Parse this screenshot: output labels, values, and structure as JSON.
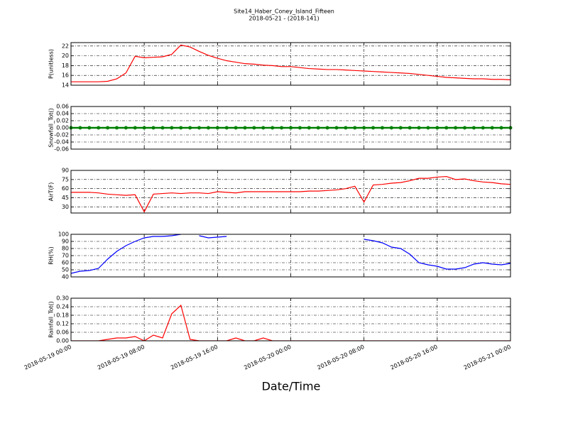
{
  "figure": {
    "title": "Site14_Haber_Coney_Island_Fifteen",
    "subtitle": "2018-05-21 - (2018-141)",
    "xlabel": "Date/Time"
  },
  "chart_data": [
    {
      "type": "line",
      "ylabel": "P(unitless)",
      "color": "#ff0000",
      "grid": true,
      "xlim": [
        "2018-05-19 00:00",
        "2018-05-21 00:00"
      ],
      "xticks": [
        "2018-05-19 00:00",
        "2018-05-19 08:00",
        "2018-05-19 16:00",
        "2018-05-20 00:00",
        "2018-05-20 08:00",
        "2018-05-20 16:00",
        "2018-05-21 00:00"
      ],
      "ylim": [
        14,
        22.7
      ],
      "yticks": [
        14,
        16,
        18,
        20,
        22
      ],
      "x": [
        "2018-05-19 00:00",
        "2018-05-19 01:00",
        "2018-05-19 02:00",
        "2018-05-19 03:00",
        "2018-05-19 04:00",
        "2018-05-19 05:00",
        "2018-05-19 06:00",
        "2018-05-19 07:00",
        "2018-05-19 08:00",
        "2018-05-19 09:00",
        "2018-05-19 10:00",
        "2018-05-19 11:00",
        "2018-05-19 12:00",
        "2018-05-19 13:00",
        "2018-05-19 14:00",
        "2018-05-19 15:00",
        "2018-05-19 16:00",
        "2018-05-19 17:00",
        "2018-05-19 18:00",
        "2018-05-19 19:00",
        "2018-05-19 20:00",
        "2018-05-19 21:00",
        "2018-05-19 22:00",
        "2018-05-19 23:00",
        "2018-05-20 00:00",
        "2018-05-20 01:00",
        "2018-05-20 02:00",
        "2018-05-20 03:00",
        "2018-05-20 04:00",
        "2018-05-20 05:00",
        "2018-05-20 06:00",
        "2018-05-20 07:00",
        "2018-05-20 08:00",
        "2018-05-20 09:00",
        "2018-05-20 10:00",
        "2018-05-20 11:00",
        "2018-05-20 12:00",
        "2018-05-20 13:00",
        "2018-05-20 14:00",
        "2018-05-20 15:00",
        "2018-05-20 16:00",
        "2018-05-20 17:00",
        "2018-05-20 18:00",
        "2018-05-20 19:00",
        "2018-05-20 20:00",
        "2018-05-20 21:00",
        "2018-05-20 22:00",
        "2018-05-20 23:00",
        "2018-05-21 00:00"
      ],
      "values": [
        14.7,
        14.7,
        14.7,
        14.7,
        14.8,
        15.3,
        16.5,
        19.9,
        19.6,
        19.7,
        19.8,
        20.3,
        22.2,
        21.8,
        20.9,
        20.1,
        19.5,
        19.0,
        18.7,
        18.4,
        18.3,
        18.1,
        18.0,
        17.8,
        17.8,
        17.6,
        17.4,
        17.3,
        17.2,
        17.2,
        17.1,
        17.0,
        16.9,
        16.8,
        16.7,
        16.6,
        16.5,
        16.4,
        16.2,
        16.0,
        15.8,
        15.6,
        15.5,
        15.4,
        15.3,
        15.3,
        15.2,
        15.2,
        15.1
      ]
    },
    {
      "type": "line",
      "ylabel": "Snowfall_Tot()",
      "color": "#008000",
      "markers": true,
      "grid": true,
      "xlim": [
        "2018-05-19 00:00",
        "2018-05-21 00:00"
      ],
      "xticks": [
        "2018-05-19 00:00",
        "2018-05-19 08:00",
        "2018-05-19 16:00",
        "2018-05-20 00:00",
        "2018-05-20 08:00",
        "2018-05-20 16:00",
        "2018-05-21 00:00"
      ],
      "ylim": [
        -0.06,
        0.06
      ],
      "yticks": [
        -0.06,
        -0.04,
        -0.02,
        {
          "value": 0,
          "label": "0.00"
        },
        0.02,
        0.04,
        0.06
      ],
      "x": [
        "2018-05-19 00:00",
        "2018-05-19 01:00",
        "2018-05-19 02:00",
        "2018-05-19 03:00",
        "2018-05-19 04:00",
        "2018-05-19 05:00",
        "2018-05-19 06:00",
        "2018-05-19 07:00",
        "2018-05-19 08:00",
        "2018-05-19 09:00",
        "2018-05-19 10:00",
        "2018-05-19 11:00",
        "2018-05-19 12:00",
        "2018-05-19 13:00",
        "2018-05-19 14:00",
        "2018-05-19 15:00",
        "2018-05-19 16:00",
        "2018-05-19 17:00",
        "2018-05-19 18:00",
        "2018-05-19 19:00",
        "2018-05-19 20:00",
        "2018-05-19 21:00",
        "2018-05-19 22:00",
        "2018-05-19 23:00",
        "2018-05-20 00:00",
        "2018-05-20 01:00",
        "2018-05-20 02:00",
        "2018-05-20 03:00",
        "2018-05-20 04:00",
        "2018-05-20 05:00",
        "2018-05-20 06:00",
        "2018-05-20 07:00",
        "2018-05-20 08:00",
        "2018-05-20 09:00",
        "2018-05-20 10:00",
        "2018-05-20 11:00",
        "2018-05-20 12:00",
        "2018-05-20 13:00",
        "2018-05-20 14:00",
        "2018-05-20 15:00",
        "2018-05-20 16:00",
        "2018-05-20 17:00",
        "2018-05-20 18:00",
        "2018-05-20 19:00",
        "2018-05-20 20:00",
        "2018-05-20 21:00",
        "2018-05-20 22:00",
        "2018-05-20 23:00",
        "2018-05-21 00:00"
      ],
      "values": [
        0,
        0,
        0,
        0,
        0,
        0,
        0,
        0,
        0,
        0,
        0,
        0,
        0,
        0,
        0,
        0,
        0,
        0,
        0,
        0,
        0,
        0,
        0,
        0,
        0,
        0,
        0,
        0,
        0,
        0,
        0,
        0,
        0,
        0,
        0,
        0,
        0,
        0,
        0,
        0,
        0,
        0,
        0,
        0,
        0,
        0,
        0,
        0,
        0
      ]
    },
    {
      "type": "line",
      "ylabel": "AirT(F)",
      "color": "#ff0000",
      "grid": true,
      "xlim": [
        "2018-05-19 00:00",
        "2018-05-21 00:00"
      ],
      "xticks": [
        "2018-05-19 00:00",
        "2018-05-19 08:00",
        "2018-05-19 16:00",
        "2018-05-20 00:00",
        "2018-05-20 08:00",
        "2018-05-20 16:00",
        "2018-05-21 00:00"
      ],
      "ylim": [
        20,
        90
      ],
      "yticks": [
        30,
        45,
        60,
        75,
        90
      ],
      "x": [
        "2018-05-19 00:00",
        "2018-05-19 01:00",
        "2018-05-19 02:00",
        "2018-05-19 03:00",
        "2018-05-19 04:00",
        "2018-05-19 05:00",
        "2018-05-19 06:00",
        "2018-05-19 07:00",
        "2018-05-19 08:00",
        "2018-05-19 09:00",
        "2018-05-19 10:00",
        "2018-05-19 11:00",
        "2018-05-19 12:00",
        "2018-05-19 13:00",
        "2018-05-19 14:00",
        "2018-05-19 15:00",
        "2018-05-19 16:00",
        "2018-05-19 17:00",
        "2018-05-19 18:00",
        "2018-05-19 19:00",
        "2018-05-19 20:00",
        "2018-05-19 21:00",
        "2018-05-19 22:00",
        "2018-05-19 23:00",
        "2018-05-20 00:00",
        "2018-05-20 01:00",
        "2018-05-20 02:00",
        "2018-05-20 03:00",
        "2018-05-20 04:00",
        "2018-05-20 05:00",
        "2018-05-20 06:00",
        "2018-05-20 07:00",
        "2018-05-20 08:00",
        "2018-05-20 09:00",
        "2018-05-20 10:00",
        "2018-05-20 11:00",
        "2018-05-20 12:00",
        "2018-05-20 13:00",
        "2018-05-20 14:00",
        "2018-05-20 15:00",
        "2018-05-20 16:00",
        "2018-05-20 17:00",
        "2018-05-20 18:00",
        "2018-05-20 19:00",
        "2018-05-20 20:00",
        "2018-05-20 21:00",
        "2018-05-20 22:00",
        "2018-05-20 23:00",
        "2018-05-21 00:00"
      ],
      "values": [
        54,
        54,
        54,
        53,
        51,
        50,
        49,
        50,
        22,
        51,
        52,
        53,
        52,
        53,
        53,
        52,
        55,
        54,
        53,
        55,
        55,
        55,
        55,
        55,
        55,
        55,
        56,
        56,
        57,
        58,
        60,
        64,
        38,
        66,
        67,
        69,
        70,
        73,
        77,
        77,
        79,
        80,
        75,
        76,
        73,
        71,
        70,
        68,
        67
      ]
    },
    {
      "type": "line",
      "ylabel": "RH(%)",
      "color": "#0000ff",
      "grid": true,
      "xlim": [
        "2018-05-19 00:00",
        "2018-05-21 00:00"
      ],
      "xticks": [
        "2018-05-19 00:00",
        "2018-05-19 08:00",
        "2018-05-19 16:00",
        "2018-05-20 00:00",
        "2018-05-20 08:00",
        "2018-05-20 16:00",
        "2018-05-21 00:00"
      ],
      "ylim": [
        40,
        100
      ],
      "yticks": [
        40,
        50,
        60,
        70,
        80,
        90,
        100
      ],
      "x": [
        "2018-05-19 00:00",
        "2018-05-19 01:00",
        "2018-05-19 02:00",
        "2018-05-19 03:00",
        "2018-05-19 04:00",
        "2018-05-19 05:00",
        "2018-05-19 06:00",
        "2018-05-19 07:00",
        "2018-05-19 08:00",
        "2018-05-19 09:00",
        "2018-05-19 10:00",
        "2018-05-19 11:00",
        "2018-05-19 12:00",
        "2018-05-19 13:00",
        "2018-05-19 14:00",
        "2018-05-19 15:00",
        "2018-05-19 16:00",
        "2018-05-19 17:00",
        "2018-05-19 18:00",
        "2018-05-19 19:00",
        "2018-05-19 20:00",
        "2018-05-19 21:00",
        "2018-05-19 22:00",
        "2018-05-19 23:00",
        "2018-05-20 00:00",
        "2018-05-20 01:00",
        "2018-05-20 02:00",
        "2018-05-20 03:00",
        "2018-05-20 04:00",
        "2018-05-20 05:00",
        "2018-05-20 06:00",
        "2018-05-20 07:00",
        "2018-05-20 08:00",
        "2018-05-20 09:00",
        "2018-05-20 10:00",
        "2018-05-20 11:00",
        "2018-05-20 12:00",
        "2018-05-20 13:00",
        "2018-05-20 14:00",
        "2018-05-20 15:00",
        "2018-05-20 16:00",
        "2018-05-20 17:00",
        "2018-05-20 18:00",
        "2018-05-20 19:00",
        "2018-05-20 20:00",
        "2018-05-20 21:00",
        "2018-05-20 22:00",
        "2018-05-20 23:00",
        "2018-05-21 00:00"
      ],
      "values": [
        45,
        48,
        49,
        52,
        65,
        76,
        84,
        90,
        95,
        97,
        97,
        98,
        100,
        null,
        98,
        95,
        96,
        97,
        null,
        null,
        null,
        null,
        null,
        null,
        null,
        null,
        null,
        null,
        null,
        null,
        null,
        null,
        93,
        91,
        88,
        82,
        80,
        72,
        60,
        57,
        55,
        51,
        51,
        53,
        58,
        60,
        58,
        57,
        59
      ]
    },
    {
      "type": "line",
      "ylabel": "Rainfall_Tot()",
      "color": "#ff0000",
      "grid": true,
      "xlim": [
        "2018-05-19 00:00",
        "2018-05-21 00:00"
      ],
      "xticks": [
        "2018-05-19 00:00",
        "2018-05-19 08:00",
        "2018-05-19 16:00",
        "2018-05-20 00:00",
        "2018-05-20 08:00",
        "2018-05-20 16:00",
        "2018-05-21 00:00"
      ],
      "ylim": [
        0,
        0.3
      ],
      "yticks": [
        {
          "value": 0,
          "label": "0.00"
        },
        0.06,
        0.12,
        0.18,
        0.24,
        {
          "value": 0.3,
          "label": "0.30"
        }
      ],
      "x": [
        "2018-05-19 00:00",
        "2018-05-19 01:00",
        "2018-05-19 02:00",
        "2018-05-19 03:00",
        "2018-05-19 04:00",
        "2018-05-19 05:00",
        "2018-05-19 06:00",
        "2018-05-19 07:00",
        "2018-05-19 08:00",
        "2018-05-19 09:00",
        "2018-05-19 10:00",
        "2018-05-19 11:00",
        "2018-05-19 12:00",
        "2018-05-19 13:00",
        "2018-05-19 14:00",
        "2018-05-19 15:00",
        "2018-05-19 16:00",
        "2018-05-19 17:00",
        "2018-05-19 18:00",
        "2018-05-19 19:00",
        "2018-05-19 20:00",
        "2018-05-19 21:00",
        "2018-05-19 22:00",
        "2018-05-19 23:00",
        "2018-05-20 00:00",
        "2018-05-20 01:00",
        "2018-05-20 02:00",
        "2018-05-20 03:00",
        "2018-05-20 04:00",
        "2018-05-20 05:00",
        "2018-05-20 06:00",
        "2018-05-20 07:00",
        "2018-05-20 08:00",
        "2018-05-20 09:00",
        "2018-05-20 10:00",
        "2018-05-20 11:00",
        "2018-05-20 12:00",
        "2018-05-20 13:00",
        "2018-05-20 14:00",
        "2018-05-20 15:00",
        "2018-05-20 16:00",
        "2018-05-20 17:00",
        "2018-05-20 18:00",
        "2018-05-20 19:00",
        "2018-05-20 20:00",
        "2018-05-20 21:00",
        "2018-05-20 22:00",
        "2018-05-20 23:00",
        "2018-05-21 00:00"
      ],
      "values": [
        0,
        0,
        0,
        0,
        0.01,
        0.02,
        0.02,
        0.03,
        0,
        0.04,
        0.02,
        0.19,
        0.25,
        0.01,
        0,
        0,
        0,
        0,
        0.02,
        0,
        0,
        0.02,
        0,
        0,
        0,
        0,
        0,
        0,
        0,
        0,
        0,
        0,
        0,
        0,
        0,
        0,
        0,
        0,
        0,
        0,
        0,
        0,
        0,
        0,
        0,
        0,
        0,
        0,
        0
      ]
    }
  ]
}
